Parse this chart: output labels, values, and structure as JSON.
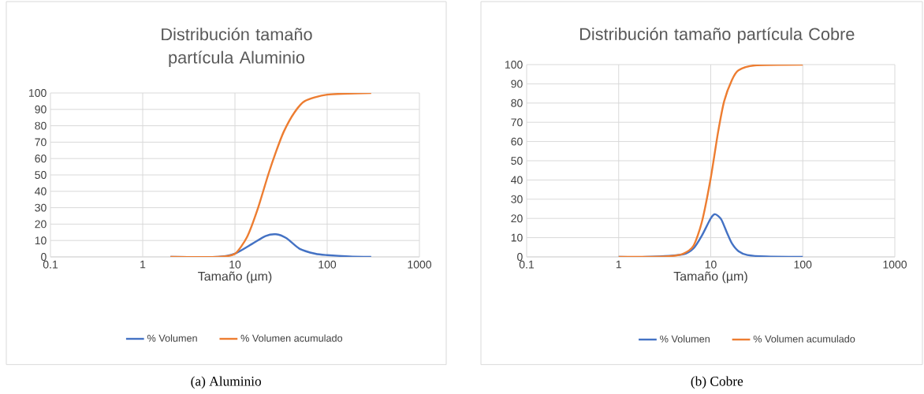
{
  "chart_data": [
    {
      "type": "line",
      "title": "Distribución tamaño partícula Aluminio",
      "xlabel": "Tamaño (µm)",
      "log": "x",
      "grid": true,
      "legend": "bottom",
      "marker": "none",
      "line_style": "solid",
      "xlim": [
        0.1,
        1000
      ],
      "xticks": [
        0.1,
        1,
        10,
        100,
        1000
      ],
      "ylim": [
        0,
        100
      ],
      "yticks": [
        0,
        10,
        20,
        30,
        40,
        50,
        60,
        70,
        80,
        90,
        100
      ],
      "annotations": [
        "(a) Aluminio"
      ],
      "series": [
        {
          "name": "% Volumen",
          "color": "#4472c4",
          "x": [
            2,
            6.6,
            10,
            15.4,
            21.4,
            27.8,
            36.2,
            50,
            74.5,
            100,
            174,
            300
          ],
          "values": [
            0,
            0,
            2,
            8,
            12.7,
            13.8,
            11.4,
            5,
            1.9,
            1.1,
            0.3,
            0
          ]
        },
        {
          "name": "% Volumen acumulado",
          "color": "#ed7d31",
          "x": [
            2,
            6.6,
            10,
            13.5,
            17.6,
            22.9,
            27.8,
            33.9,
            44,
            57,
            100,
            300
          ],
          "values": [
            0,
            0,
            1.9,
            12,
            29,
            50,
            64,
            76.5,
            88,
            95,
            99,
            100
          ]
        }
      ]
    },
    {
      "type": "line",
      "title": "Distribución tamaño partícula Cobre",
      "xlabel": "Tamaño (µm)",
      "log": "x",
      "grid": true,
      "legend": "bottom",
      "marker": "none",
      "line_style": "solid",
      "xlim": [
        0.1,
        1000
      ],
      "xticks": [
        0.1,
        1,
        10,
        100,
        1000
      ],
      "ylim": [
        0,
        100
      ],
      "yticks": [
        0,
        10,
        20,
        30,
        40,
        50,
        60,
        70,
        80,
        90,
        100
      ],
      "annotations": [
        "(b) Cobre"
      ],
      "series": [
        {
          "name": "% Volumen",
          "color": "#4472c4",
          "x": [
            1,
            2,
            3.5,
            5,
            6.5,
            8,
            10,
            11.2,
            13,
            15,
            17,
            20,
            25,
            40,
            100
          ],
          "values": [
            0,
            0,
            null,
            1.3,
            4.4,
            11,
            20,
            22.2,
            19.5,
            12.6,
            7,
            3,
            1,
            0.2,
            0
          ]
        },
        {
          "name": "% Volumen acumulado",
          "color": "#ed7d31",
          "x": [
            1,
            2,
            3.5,
            5,
            6.5,
            8,
            10,
            12,
            14,
            17,
            20,
            30,
            100
          ],
          "values": [
            0,
            0,
            0.3,
            1.6,
            5.8,
            18,
            41,
            64.7,
            81,
            92,
            97,
            99.6,
            100
          ]
        }
      ]
    }
  ]
}
